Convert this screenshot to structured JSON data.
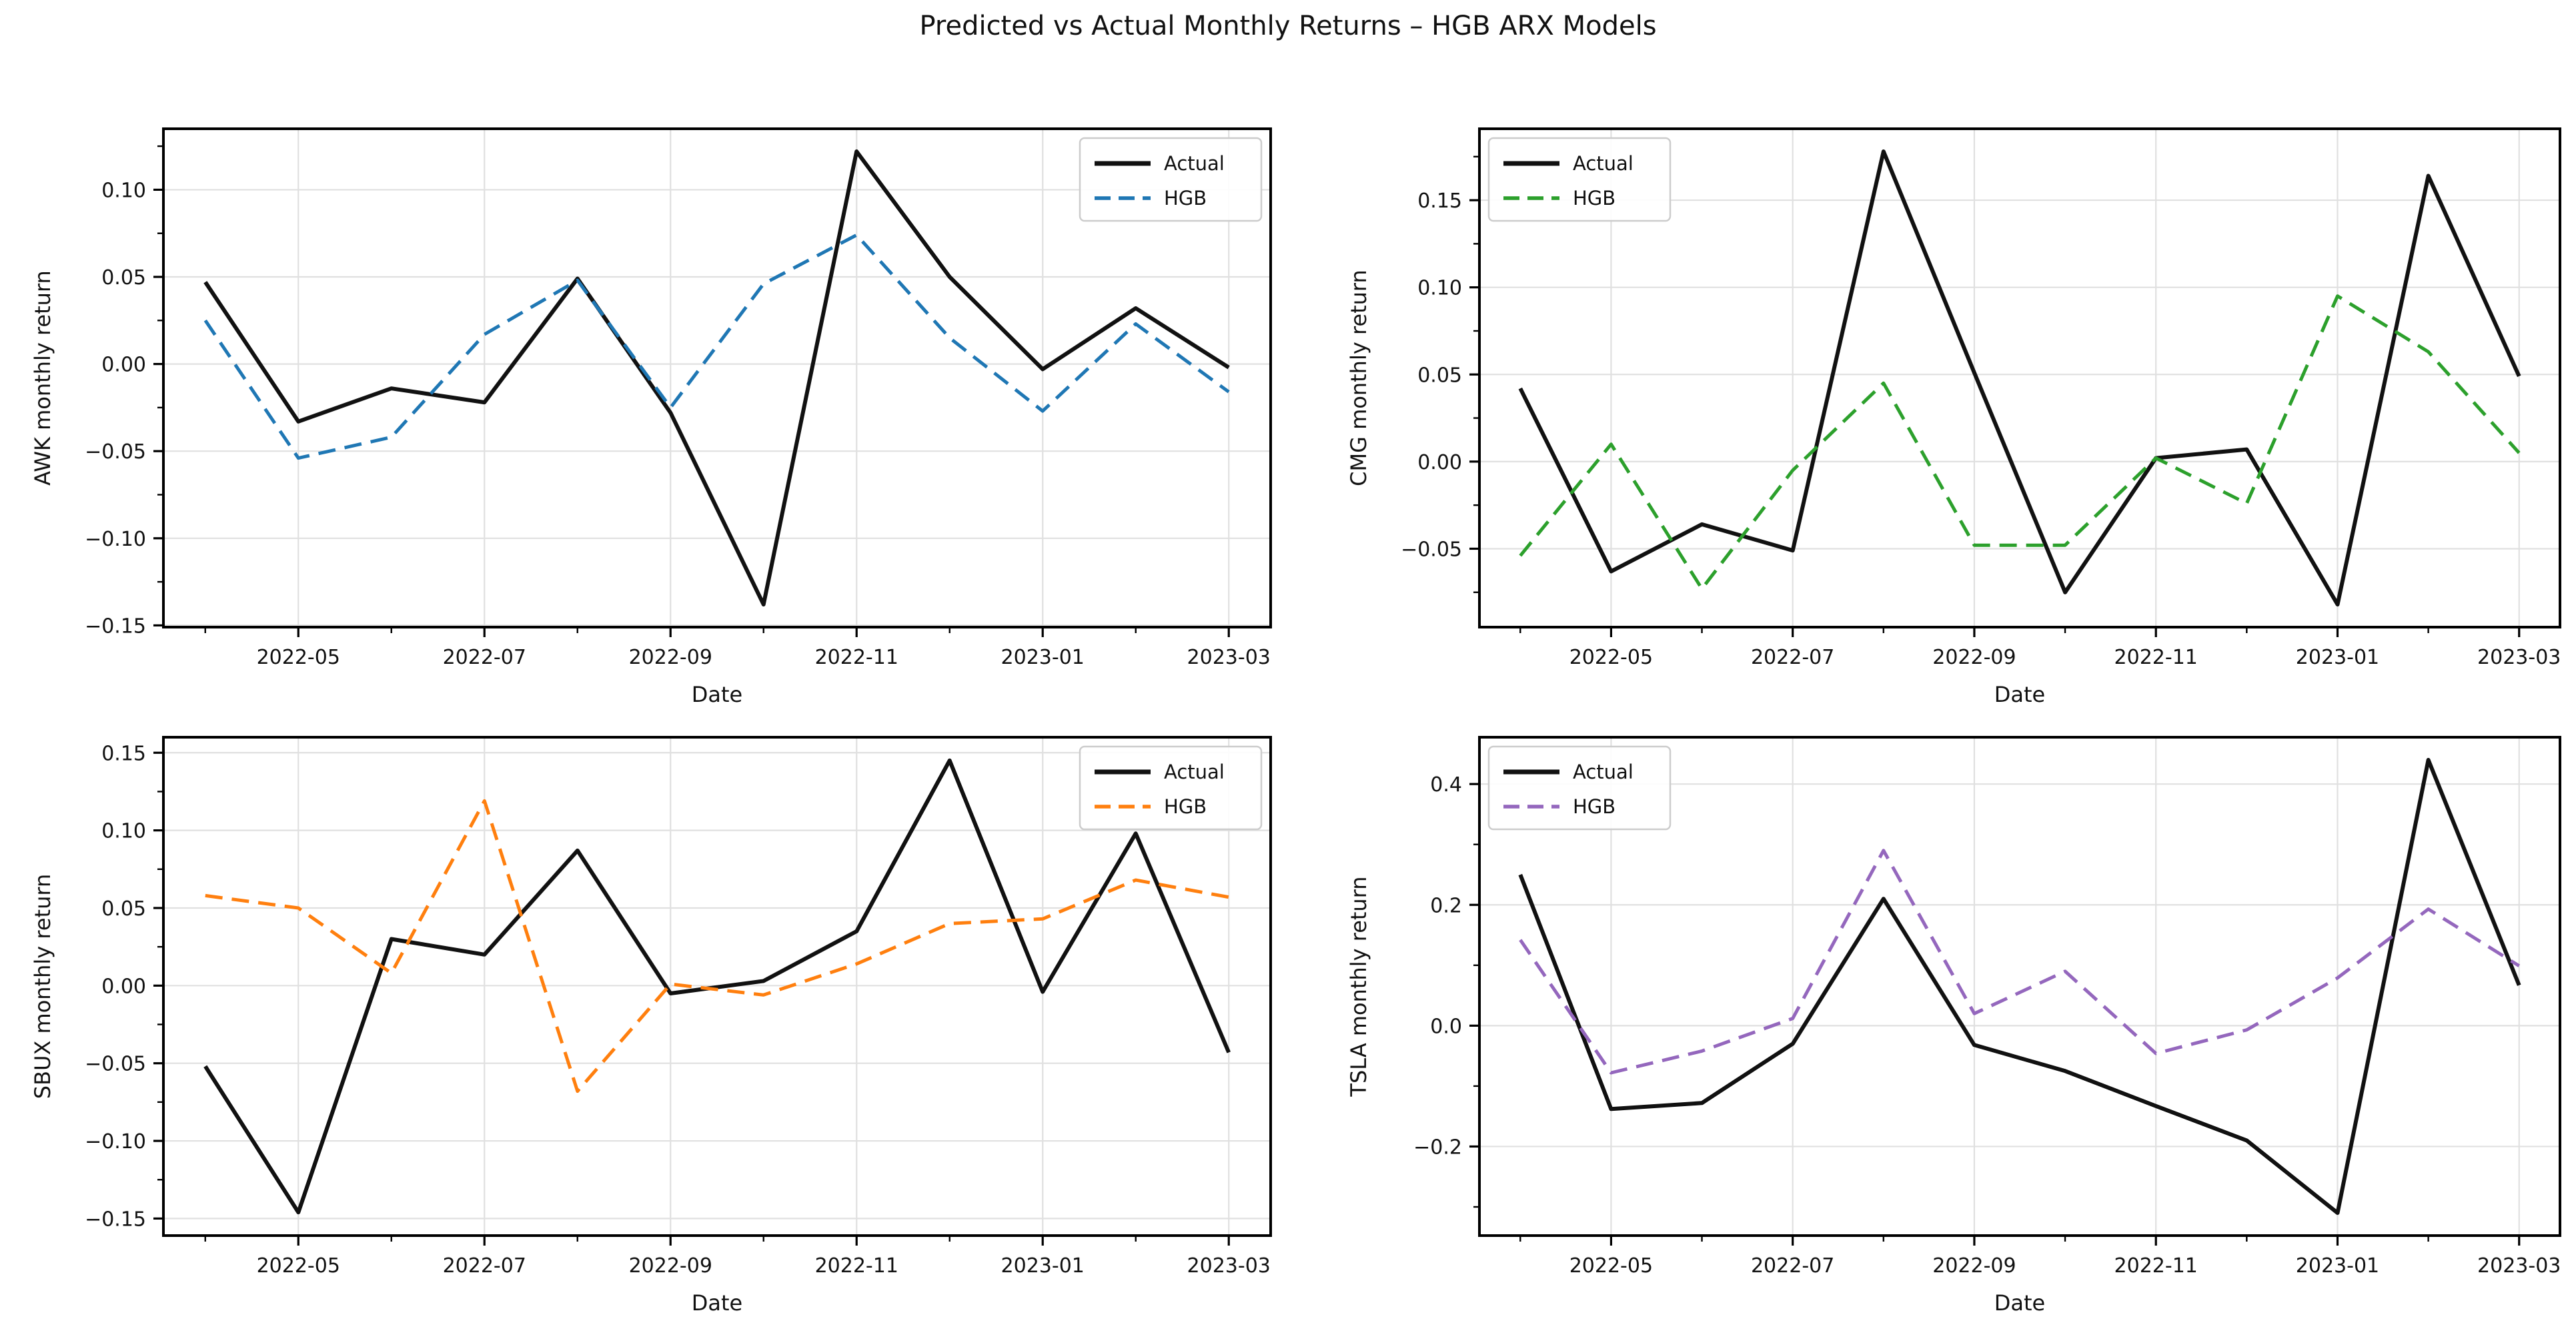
{
  "page": {
    "title": "Predicted vs Actual Monthly Returns – HGB ARX Models"
  },
  "chart_data": [
    {
      "type": "line",
      "ticker": "AWK",
      "xlabel": "Date",
      "ylabel": "AWK monthly return",
      "categories": [
        "2022-04",
        "2022-05",
        "2022-06",
        "2022-07",
        "2022-08",
        "2022-09",
        "2022-10",
        "2022-11",
        "2022-12",
        "2023-01",
        "2023-02",
        "2023-03"
      ],
      "xtick_indices": [
        1,
        3,
        5,
        7,
        9,
        11
      ],
      "xtick_labels": [
        "2022-05",
        "2022-07",
        "2022-09",
        "2022-11",
        "2023-01",
        "2023-03"
      ],
      "yticks": [
        -0.15,
        -0.1,
        -0.05,
        0.0,
        0.05,
        0.1
      ],
      "ytick_labels": [
        "−0.15",
        "−0.10",
        "−0.05",
        "0.00",
        "0.05",
        "0.10"
      ],
      "ylim": [
        -0.151,
        0.135
      ],
      "grid": true,
      "legend": {
        "position": "top-right",
        "entries": [
          "Actual",
          "HGB"
        ]
      },
      "series": [
        {
          "name": "Actual",
          "color": "#111111",
          "style": "solid",
          "values": [
            0.047,
            -0.033,
            -0.014,
            -0.022,
            0.049,
            -0.028,
            -0.138,
            0.122,
            0.05,
            -0.003,
            0.032,
            -0.002
          ]
        },
        {
          "name": "HGB",
          "color": "#1f77b4",
          "style": "dashed",
          "values": [
            0.025,
            -0.054,
            -0.042,
            0.017,
            0.048,
            -0.025,
            0.046,
            0.074,
            0.015,
            -0.027,
            0.023,
            -0.016
          ]
        }
      ]
    },
    {
      "type": "line",
      "ticker": "CMG",
      "xlabel": "Date",
      "ylabel": "CMG monthly return",
      "categories": [
        "2022-04",
        "2022-05",
        "2022-06",
        "2022-07",
        "2022-08",
        "2022-09",
        "2022-10",
        "2022-11",
        "2022-12",
        "2023-01",
        "2023-02",
        "2023-03"
      ],
      "xtick_indices": [
        1,
        3,
        5,
        7,
        9,
        11
      ],
      "xtick_labels": [
        "2022-05",
        "2022-07",
        "2022-09",
        "2022-11",
        "2023-01",
        "2023-03"
      ],
      "yticks": [
        -0.05,
        0.0,
        0.05,
        0.1,
        0.15
      ],
      "ytick_labels": [
        "−0.05",
        "0.00",
        "0.05",
        "0.10",
        "0.15"
      ],
      "ylim": [
        -0.095,
        0.191
      ],
      "grid": true,
      "legend": {
        "position": "top-left",
        "entries": [
          "Actual",
          "HGB"
        ]
      },
      "series": [
        {
          "name": "Actual",
          "color": "#111111",
          "style": "solid",
          "values": [
            0.042,
            -0.063,
            -0.036,
            -0.051,
            0.178,
            0.051,
            -0.075,
            0.002,
            0.007,
            -0.082,
            0.164,
            0.049
          ]
        },
        {
          "name": "HGB",
          "color": "#2ca02c",
          "style": "dashed",
          "values": [
            -0.054,
            0.01,
            -0.073,
            -0.005,
            0.045,
            -0.048,
            -0.048,
            0.002,
            -0.024,
            0.095,
            0.063,
            0.005
          ]
        }
      ]
    },
    {
      "type": "line",
      "ticker": "SBUX",
      "xlabel": "Date",
      "ylabel": "SBUX monthly return",
      "categories": [
        "2022-04",
        "2022-05",
        "2022-06",
        "2022-07",
        "2022-08",
        "2022-09",
        "2022-10",
        "2022-11",
        "2022-12",
        "2023-01",
        "2023-02",
        "2023-03"
      ],
      "xtick_indices": [
        1,
        3,
        5,
        7,
        9,
        11
      ],
      "xtick_labels": [
        "2022-05",
        "2022-07",
        "2022-09",
        "2022-11",
        "2023-01",
        "2023-03"
      ],
      "yticks": [
        -0.15,
        -0.1,
        -0.05,
        0.0,
        0.05,
        0.1,
        0.15
      ],
      "ytick_labels": [
        "−0.15",
        "−0.10",
        "−0.05",
        "0.00",
        "0.05",
        "0.10",
        "0.15"
      ],
      "ylim": [
        -0.161,
        0.16
      ],
      "grid": true,
      "legend": {
        "position": "top-right",
        "entries": [
          "Actual",
          "HGB"
        ]
      },
      "series": [
        {
          "name": "Actual",
          "color": "#111111",
          "style": "solid",
          "values": [
            -0.052,
            -0.146,
            0.03,
            0.02,
            0.087,
            -0.005,
            0.003,
            0.035,
            0.145,
            -0.004,
            0.098,
            -0.043
          ]
        },
        {
          "name": "HGB",
          "color": "#ff7f0e",
          "style": "dashed",
          "values": [
            0.058,
            0.05,
            0.008,
            0.119,
            -0.068,
            0.001,
            -0.006,
            0.014,
            0.04,
            0.043,
            0.068,
            0.057
          ]
        }
      ]
    },
    {
      "type": "line",
      "ticker": "TSLA",
      "xlabel": "Date",
      "ylabel": "TSLA monthly return",
      "categories": [
        "2022-04",
        "2022-05",
        "2022-06",
        "2022-07",
        "2022-08",
        "2022-09",
        "2022-10",
        "2022-11",
        "2022-12",
        "2023-01",
        "2023-02",
        "2023-03"
      ],
      "xtick_indices": [
        1,
        3,
        5,
        7,
        9,
        11
      ],
      "xtick_labels": [
        "2022-05",
        "2022-07",
        "2022-09",
        "2022-11",
        "2023-01",
        "2023-03"
      ],
      "yticks": [
        -0.2,
        0.0,
        0.2,
        0.4
      ],
      "ytick_labels": [
        "−0.2",
        "0.0",
        "0.2",
        "0.4"
      ],
      "ylim": [
        -0.3475,
        0.4775
      ],
      "grid": true,
      "legend": {
        "position": "top-left",
        "entries": [
          "Actual",
          "HGB"
        ]
      },
      "series": [
        {
          "name": "Actual",
          "color": "#111111",
          "style": "solid",
          "values": [
            0.25,
            -0.138,
            -0.128,
            -0.03,
            0.21,
            -0.032,
            -0.075,
            -0.133,
            -0.19,
            -0.31,
            0.44,
            0.067
          ]
        },
        {
          "name": "HGB",
          "color": "#9467bd",
          "style": "dashed",
          "values": [
            0.142,
            -0.078,
            -0.042,
            0.012,
            0.29,
            0.02,
            0.09,
            -0.046,
            -0.007,
            0.079,
            0.193,
            0.099
          ]
        }
      ]
    }
  ]
}
